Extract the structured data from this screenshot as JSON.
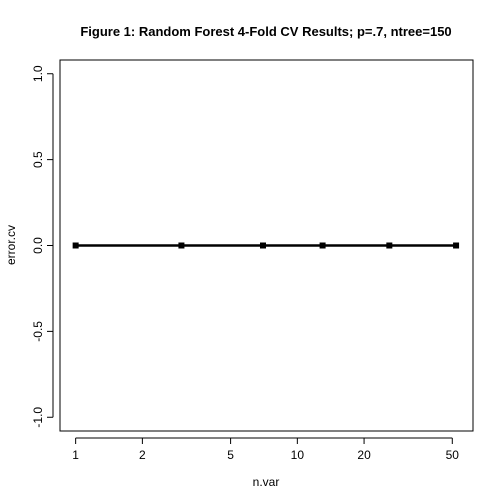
{
  "chart_data": {
    "type": "line",
    "title": "Figure 1: Random Forest 4-Fold CV Results; p=.7, ntree=150",
    "xlabel": "n.var",
    "ylabel": "error.cv",
    "x_scale": "log",
    "xlim": [
      0.85,
      62
    ],
    "ylim": [
      -1.08,
      1.08
    ],
    "x_ticks": [
      1,
      2,
      5,
      10,
      20,
      50
    ],
    "x_tick_labels": [
      "1",
      "2",
      "5",
      "10",
      "20",
      "50"
    ],
    "y_ticks": [
      -1.0,
      -0.5,
      0.0,
      0.5,
      1.0
    ],
    "y_tick_labels": [
      "-1.0",
      "-0.5",
      "0.0",
      "0.5",
      "1.0"
    ],
    "grid": false,
    "series": [
      {
        "x": [
          1,
          3,
          7,
          13,
          26,
          52
        ],
        "y": [
          0,
          0,
          0,
          0,
          0,
          0
        ],
        "color": "#000000",
        "marker": "square"
      }
    ]
  }
}
